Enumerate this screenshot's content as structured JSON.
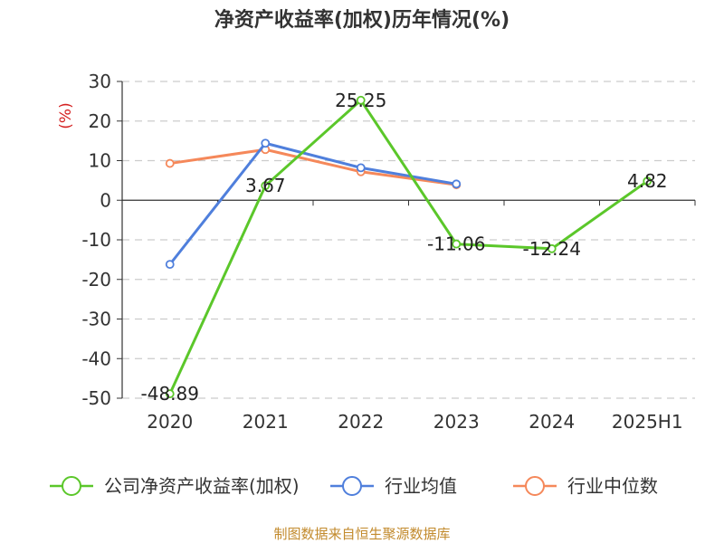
{
  "chart_data": {
    "type": "line",
    "title": "净资产收益率(加权)历年情况(%)",
    "ylabel": "(%)",
    "categories": [
      "2020",
      "2021",
      "2022",
      "2023",
      "2024",
      "2025H1"
    ],
    "ylim": [
      -50,
      30
    ],
    "yticks": [
      30,
      20,
      10,
      0,
      -10,
      -20,
      -30,
      -40,
      -50
    ],
    "grid": "horizontal dashed",
    "legend_position": "bottom",
    "series": [
      {
        "name": "公司净资产收益率(加权)",
        "color": "#5bc72a",
        "values": [
          -48.89,
          3.67,
          25.25,
          -11.06,
          -12.24,
          4.82
        ],
        "labels": [
          "-48.89",
          "3.67",
          "25.25",
          "-11.06",
          "-12.24",
          "4.82"
        ]
      },
      {
        "name": "行业均值",
        "color": "#4f7fdc",
        "values": [
          -16.2,
          14.4,
          8.2,
          4.1,
          null,
          null
        ]
      },
      {
        "name": "行业中位数",
        "color": "#f5885a",
        "values": [
          9.3,
          12.8,
          7.2,
          3.9,
          null,
          null
        ]
      }
    ]
  },
  "source_note": "制图数据来自恒生聚源数据库"
}
